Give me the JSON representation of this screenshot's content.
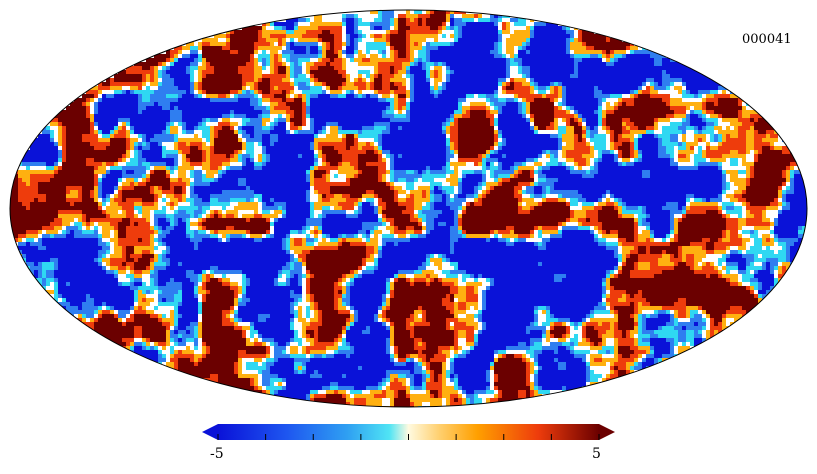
{
  "map": {
    "label": "000041",
    "projection": "mollweide",
    "description_colors": [
      "#0a12d8",
      "#2f7ef0",
      "#2fd8f2",
      "#ffffff",
      "#ffb010",
      "#ee3c0c",
      "#6b0000"
    ]
  },
  "colorbar": {
    "min_label": "-5",
    "max_label": "5",
    "min": -5,
    "max": 5,
    "ticks": [
      -5,
      -3.75,
      -2.5,
      -1.25,
      0,
      1.25,
      2.5,
      3.75,
      5
    ]
  }
}
